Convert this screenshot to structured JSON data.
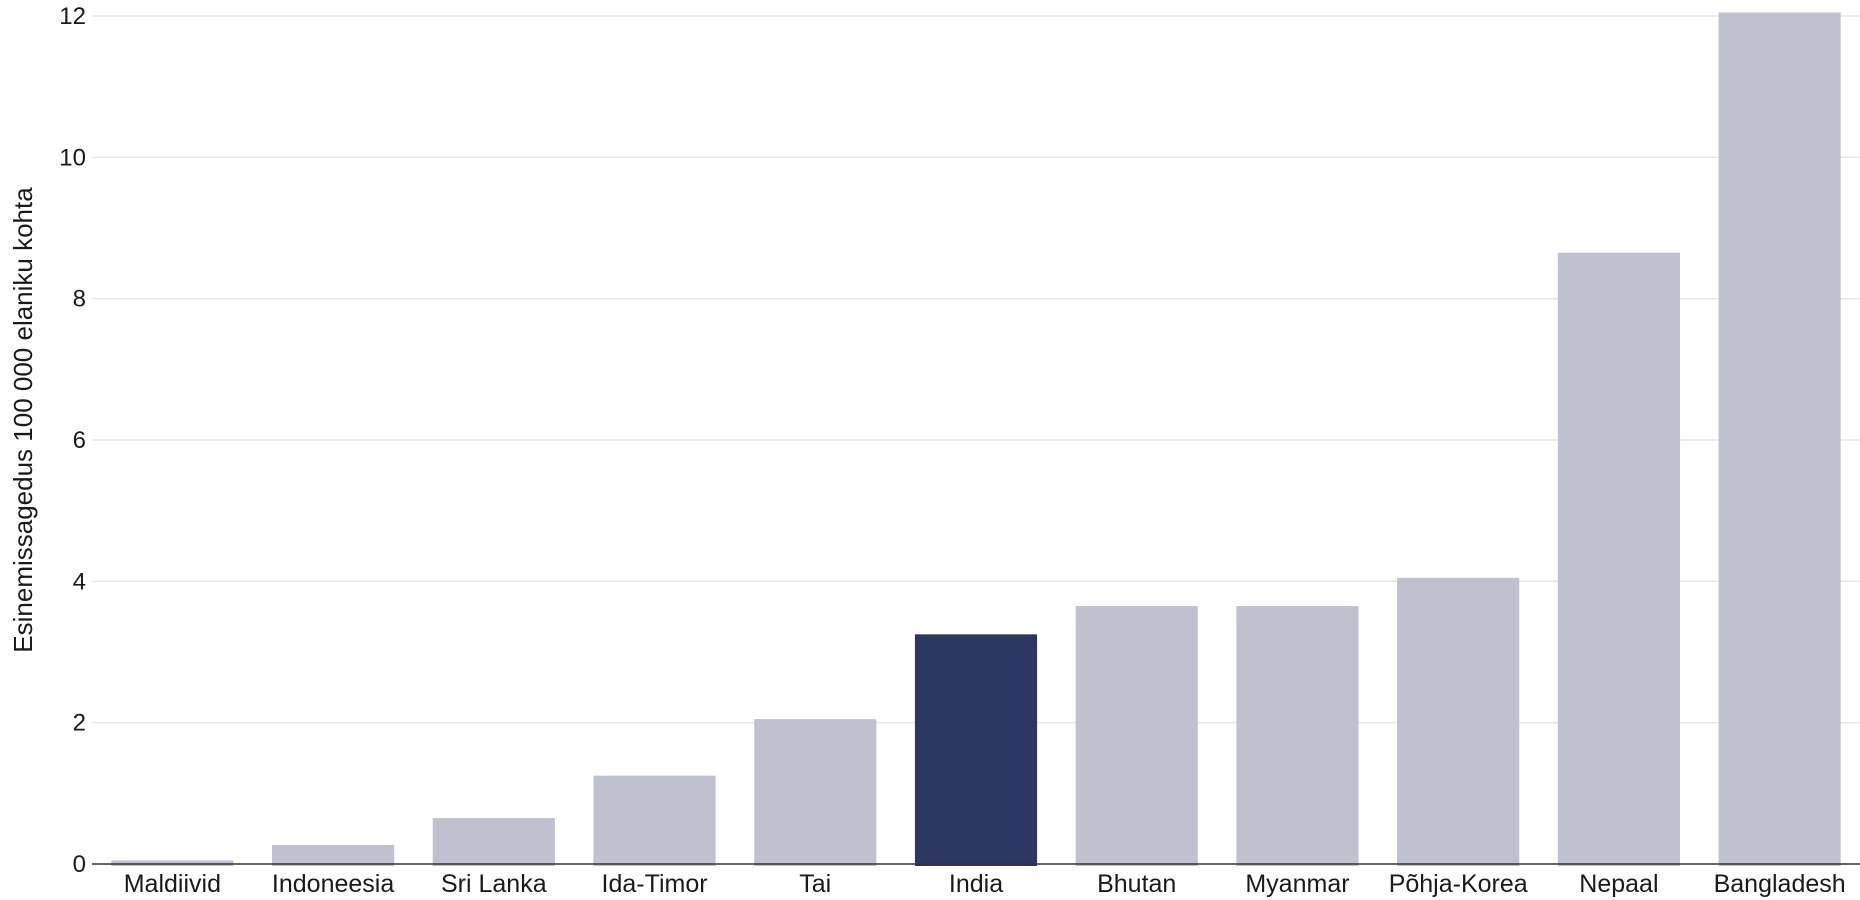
{
  "chart_data": {
    "type": "bar",
    "title": "",
    "xlabel": "",
    "ylabel": "Esinemissagedus 100 000 elaniku kohta",
    "ylim": [
      0,
      12
    ],
    "yticks": [
      0,
      2,
      4,
      6,
      8,
      10,
      12
    ],
    "grid": true,
    "categories": [
      "Maldiivid",
      "Indoneesia",
      "Sri Lanka",
      "Ida-Timor",
      "Tai",
      "India",
      "Bhutan",
      "Myanmar",
      "Põhja-Korea",
      "Nepaal",
      "Bangladesh"
    ],
    "values": [
      0.05,
      0.27,
      0.65,
      1.25,
      2.05,
      3.25,
      3.65,
      3.65,
      4.05,
      8.65,
      12.05
    ],
    "highlight": "India",
    "colors": {
      "bar": "#bfc2ce",
      "highlight": "#2b3663"
    }
  }
}
